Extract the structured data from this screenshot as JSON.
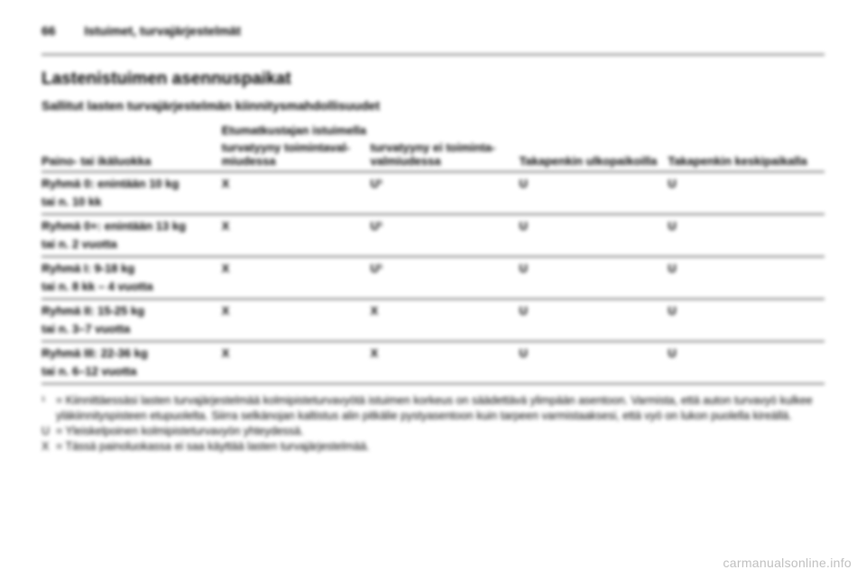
{
  "header": {
    "page_no": "66",
    "chapter": "Istuimet, turvajärjestelmät"
  },
  "title": "Lastenistuimen asennuspaikat",
  "subtitle": "Sallitut lasten turvajärjestelmän kiinnitysmahdollisuudet",
  "table": {
    "head_top_span": "Etumatkustajan istuimella",
    "head": {
      "col0": "Paino- tai ikäluokka",
      "col1": "turvatyyny toimintaval­miudessa",
      "col2": "turvatyyny ei toiminta­valmiudessa",
      "col3": "Takapenkin ulkopaikoilla",
      "col4": "Takapenkin keskipaikalla"
    },
    "rows": [
      {
        "label": "Ryhmä 0: enintään 10 kg",
        "sub": "tai n. 10 kk",
        "c1": "X",
        "c2": "U¹",
        "c3": "U",
        "c4": "U"
      },
      {
        "label": "Ryhmä 0+: enintään 13 kg",
        "sub": "tai n. 2 vuotta",
        "c1": "X",
        "c2": "U¹",
        "c3": "U",
        "c4": "U"
      },
      {
        "label": "Ryhmä I: 9-18 kg",
        "sub": "tai n. 8 kk – 4 vuotta",
        "c1": "X",
        "c2": "U¹",
        "c3": "U",
        "c4": "U"
      },
      {
        "label": "Ryhmä II: 15-25 kg",
        "sub": "tai n. 3–7 vuotta",
        "c1": "X",
        "c2": "X",
        "c3": "U",
        "c4": "U"
      },
      {
        "label": "Ryhmä III: 22-36 kg",
        "sub": "tai n. 6–12 vuotta",
        "c1": "X",
        "c2": "X",
        "c3": "U",
        "c4": "U"
      }
    ]
  },
  "footnotes": {
    "f1_key": "¹",
    "f1_txt": "= Kiinnittäessäsi lasten turvajärjestelmää kolmipisteturvavyötä istuimen korkeus on säädettävä ylimpään asentoon. Varmista, että auton turvavyö kulkee yläkiinnityspisteen etupuolelta. Siirra selkänojan kaltistus alin pitkälie pysty­asentoon kuin tarpeen varmistaaksesi, että vyö on lukon puolella kireällä.",
    "fU_key": "U",
    "fU_txt": "= Yleiskelpoinen kolmipisteturvavyön yhteydessä.",
    "fX_key": "X",
    "fX_txt": "= Tässä painoluokassa ei saa käyttää lasten turvajärjestelmää."
  },
  "watermark": "carmanualsonline.info"
}
